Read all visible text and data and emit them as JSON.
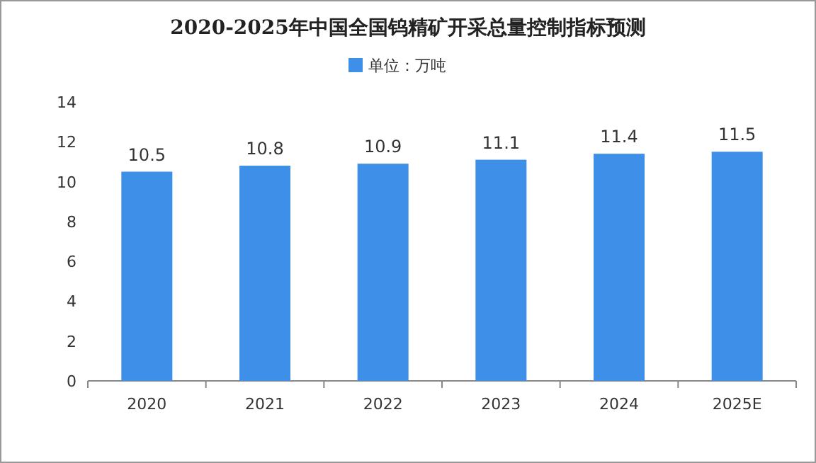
{
  "chart_data": {
    "type": "bar",
    "title": "2020-2025年中国全国钨精矿开采总量控制指标预测",
    "categories": [
      "2020",
      "2021",
      "2022",
      "2023",
      "2024",
      "2025E"
    ],
    "series": [
      {
        "name": "单位：万吨",
        "color": "#3d8fe8",
        "values": [
          10.5,
          10.8,
          10.9,
          11.1,
          11.4,
          11.5
        ]
      }
    ],
    "ylim": [
      0,
      14
    ],
    "yticks": [
      0,
      2,
      4,
      6,
      8,
      10,
      12,
      14
    ],
    "data_labels": true,
    "legend": "top",
    "grid": false
  }
}
